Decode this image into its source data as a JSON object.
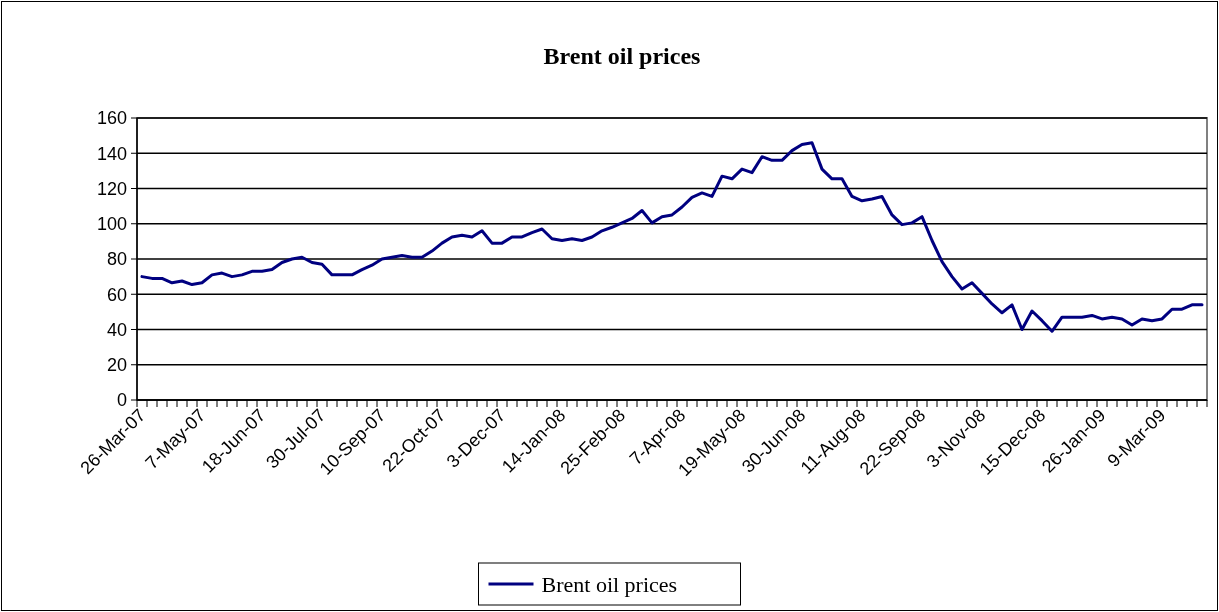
{
  "chart_data": {
    "type": "line",
    "title": "Brent oil prices",
    "categories": [
      "26-Mar-07",
      null,
      null,
      null,
      null,
      null,
      "7-May-07",
      null,
      null,
      null,
      null,
      null,
      "18-Jun-07",
      null,
      null,
      null,
      null,
      null,
      "30-Jul-07",
      null,
      null,
      null,
      null,
      null,
      "10-Sep-07",
      null,
      null,
      null,
      null,
      null,
      "22-Oct-07",
      null,
      null,
      null,
      null,
      null,
      "3-Dec-07",
      null,
      null,
      null,
      null,
      null,
      "14-Jan-08",
      null,
      null,
      null,
      null,
      null,
      "25-Feb-08",
      null,
      null,
      null,
      null,
      null,
      "7-Apr-08",
      null,
      null,
      null,
      null,
      null,
      "19-May-08",
      null,
      null,
      null,
      null,
      null,
      "30-Jun-08",
      null,
      null,
      null,
      null,
      null,
      "11-Aug-08",
      null,
      null,
      null,
      null,
      null,
      "22-Sep-08",
      null,
      null,
      null,
      null,
      null,
      "3-Nov-08",
      null,
      null,
      null,
      null,
      null,
      "15-Dec-08",
      null,
      null,
      null,
      null,
      null,
      "26-Jan-09",
      null,
      null,
      null,
      null,
      null,
      "9-Mar-09",
      null,
      null,
      null,
      null
    ],
    "series": [
      {
        "name": "Brent oil prices",
        "color": "#000080",
        "values": [
          70,
          69,
          69,
          66.5,
          67.5,
          65.5,
          66.5,
          71,
          72,
          70,
          71,
          73,
          73,
          74,
          78,
          80,
          81,
          78,
          77,
          71,
          71,
          71,
          74,
          76.5,
          80,
          81,
          82,
          81,
          81,
          84.5,
          89,
          92.5,
          93.5,
          92.5,
          96,
          89,
          89,
          92.5,
          92.5,
          95,
          97,
          91.5,
          90.5,
          91.5,
          90.5,
          92.5,
          96,
          98,
          100.5,
          103,
          107.5,
          100.5,
          104,
          105,
          109.5,
          115,
          117.5,
          115.5,
          127,
          125.5,
          131,
          129,
          138,
          136,
          136,
          141.5,
          145,
          146,
          131,
          125.5,
          125.5,
          115.5,
          113,
          114,
          115.5,
          105,
          99.5,
          100.5,
          104,
          90.5,
          78.5,
          70,
          63,
          66.5,
          60.5,
          54.5,
          49.5,
          54,
          40,
          50.5,
          45,
          39,
          47,
          47,
          47,
          48,
          46,
          47,
          46,
          42.5,
          46,
          45,
          46,
          51.5,
          51.5,
          54,
          54
        ]
      }
    ],
    "ylim": [
      0,
      160
    ],
    "yticks": [
      0,
      20,
      40,
      60,
      80,
      100,
      120,
      140,
      160
    ],
    "grid": "y",
    "legend": "bottom",
    "marker": "none",
    "line_style": "solid"
  }
}
